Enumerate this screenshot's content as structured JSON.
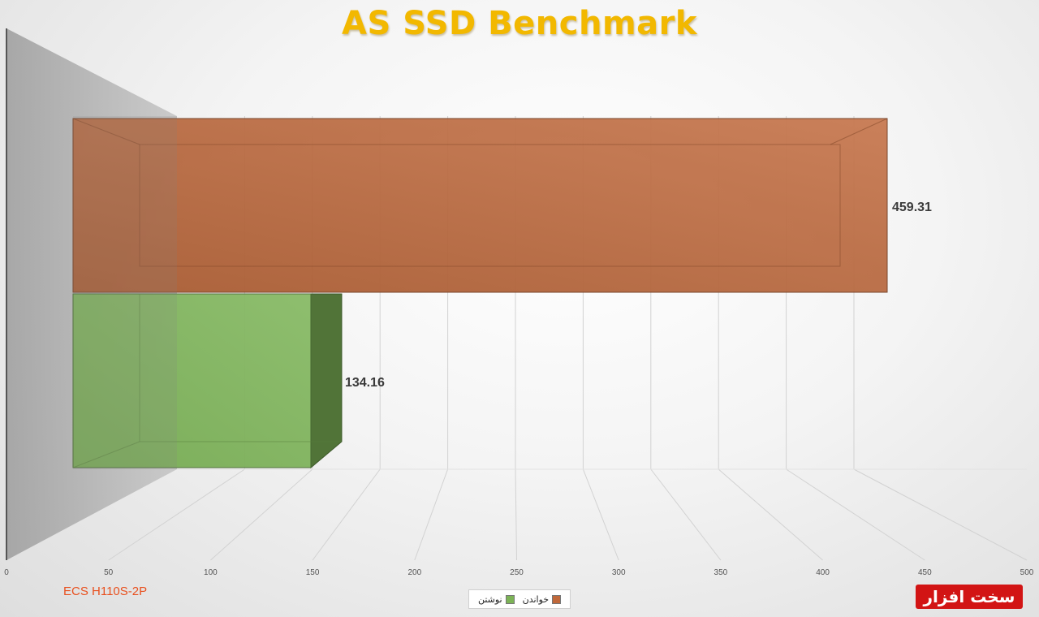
{
  "chart_data": {
    "type": "bar",
    "orientation": "horizontal",
    "style": "3d",
    "title": "AS SSD Benchmark",
    "subtitle": "",
    "xlim": [
      0,
      500
    ],
    "x_ticks": [
      0,
      50,
      100,
      150,
      200,
      250,
      300,
      350,
      400,
      450,
      500
    ],
    "grid": true,
    "legend_position": "bottom",
    "series": [
      {
        "name": "خواندن",
        "value": 459.31,
        "label": "459.31",
        "color": "#c0683a"
      },
      {
        "name": "نوشتن",
        "value": 134.16,
        "label": "134.16",
        "color": "#7cb356"
      }
    ]
  },
  "footer": {
    "model": "ECS H110S-2P",
    "specs": "",
    "logo": "سخت افزار"
  }
}
